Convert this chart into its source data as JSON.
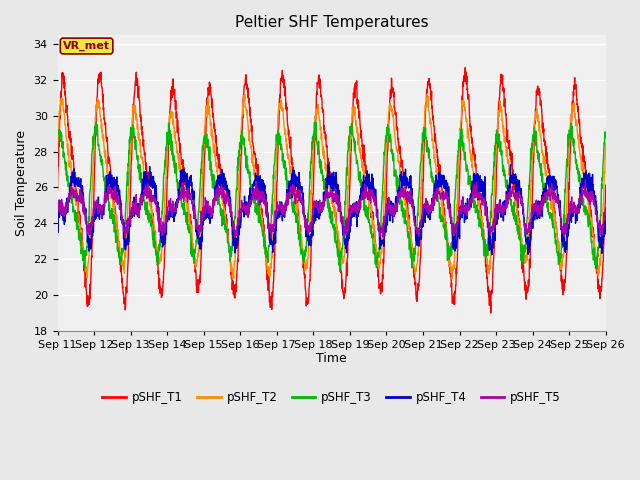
{
  "title": "Peltier SHF Temperatures",
  "xlabel": "Time",
  "ylabel": "Soil Temperature",
  "ylim": [
    18,
    34.5
  ],
  "yticks": [
    18,
    20,
    22,
    24,
    26,
    28,
    30,
    32,
    34
  ],
  "x_labels": [
    "Sep 11",
    "Sep 12",
    "Sep 13",
    "Sep 14",
    "Sep 15",
    "Sep 16",
    "Sep 17",
    "Sep 18",
    "Sep 19",
    "Sep 20",
    "Sep 21",
    "Sep 22",
    "Sep 23",
    "Sep 24",
    "Sep 25",
    "Sep 26"
  ],
  "annotation_text": "VR_met",
  "annotation_color": "#8B0000",
  "annotation_bg": "#F5E642",
  "series_colors": [
    "#FF0000",
    "#FF8C00",
    "#00BB00",
    "#0000CC",
    "#AA00AA"
  ],
  "series_labels": [
    "pSHF_T1",
    "pSHF_T2",
    "pSHF_T3",
    "pSHF_T4",
    "pSHF_T5"
  ],
  "n_points": 2000,
  "n_days": 15,
  "bg_color": "#E8E8E8",
  "plot_bg_color": "#F0F0F0",
  "grid_color": "#FFFFFF",
  "title_fontsize": 11,
  "axis_label_fontsize": 9,
  "tick_label_fontsize": 8
}
